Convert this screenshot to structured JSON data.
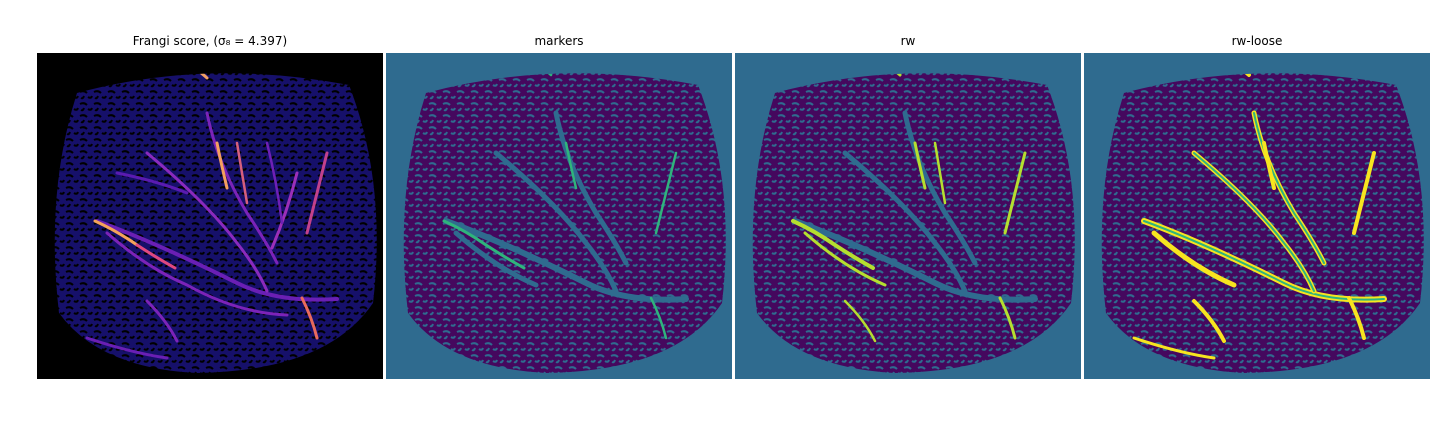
{
  "titles": {
    "frangi": "Frangi score, (σ₈ = 4.397)",
    "markers": "markers",
    "rw": "rw",
    "rw_loose": "rw-loose"
  },
  "colors": {
    "frangi_background": "#000000",
    "frangi_tissue": "#16106a",
    "frangi_vessel_low": "#6a1fb4",
    "frangi_vessel_high": "#f6a35a",
    "label_background": "#2f6b8f",
    "label_tissue": "#45085e",
    "label_marker": "#2fb47c",
    "label_rw_fill": "#b5df2f",
    "label_rw_loose": "#f7e51f"
  }
}
